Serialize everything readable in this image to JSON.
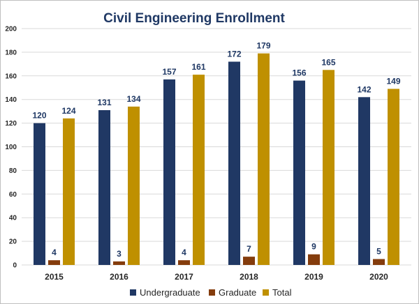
{
  "chart_data": {
    "type": "bar",
    "title": "Civil Engineering Enrollment",
    "categories": [
      "2015",
      "2016",
      "2017",
      "2018",
      "2019",
      "2020"
    ],
    "series": [
      {
        "name": "Undergraduate",
        "color": "#203864",
        "values": [
          120,
          131,
          157,
          172,
          156,
          142
        ]
      },
      {
        "name": "Graduate",
        "color": "#843c0c",
        "values": [
          4,
          3,
          4,
          7,
          9,
          5
        ]
      },
      {
        "name": "Total",
        "color": "#bf9000",
        "values": [
          124,
          134,
          161,
          179,
          165,
          149
        ]
      }
    ],
    "ylim": [
      0,
      200
    ],
    "yticks": [
      0,
      20,
      40,
      60,
      80,
      100,
      120,
      140,
      160,
      180,
      200
    ],
    "xlabel": "",
    "ylabel": "",
    "grid": true,
    "legend": "bottom-center",
    "label_color": "#1f3864",
    "grid_color": "#d9d9d9"
  }
}
